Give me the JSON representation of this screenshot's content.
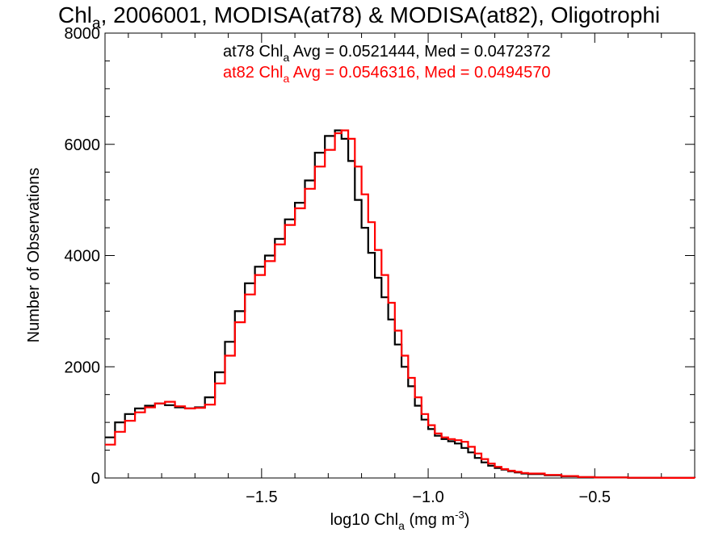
{
  "chart_data": {
    "type": "line",
    "title_parts": {
      "pre": "Chl",
      "sub": "a",
      "post": ", 2006001, MODISA(at78) & MODISA(at82), Oligotrophi"
    },
    "xlabel_parts": {
      "pre": "log10 Chl",
      "sub": "a",
      "mid": " (mg m",
      "sup": "-3",
      "post": ")"
    },
    "ylabel": "Number of Observations",
    "xlim": [
      -1.97,
      -0.2
    ],
    "ylim": [
      0,
      8000
    ],
    "xticks": [
      {
        "value": -1.5,
        "label": "−1.5"
      },
      {
        "value": -1.0,
        "label": "−1.0"
      },
      {
        "value": -0.5,
        "label": "−0.5"
      }
    ],
    "yticks": [
      {
        "value": 0,
        "label": "0"
      },
      {
        "value": 2000,
        "label": "2000"
      },
      {
        "value": 4000,
        "label": "4000"
      },
      {
        "value": 6000,
        "label": "6000"
      },
      {
        "value": 8000,
        "label": "8000"
      }
    ],
    "series": [
      {
        "name": "at78",
        "color": "#000000",
        "stats": {
          "pre": "at78 Chl",
          "sub": "a",
          "post": " Avg = 0.0521444, Med = 0.0472372"
        },
        "x": [
          -1.97,
          -1.94,
          -1.91,
          -1.88,
          -1.85,
          -1.82,
          -1.79,
          -1.76,
          -1.73,
          -1.7,
          -1.67,
          -1.64,
          -1.61,
          -1.58,
          -1.55,
          -1.52,
          -1.49,
          -1.46,
          -1.43,
          -1.4,
          -1.37,
          -1.34,
          -1.31,
          -1.28,
          -1.26,
          -1.24,
          -1.22,
          -1.2,
          -1.18,
          -1.16,
          -1.14,
          -1.12,
          -1.1,
          -1.08,
          -1.06,
          -1.04,
          -1.02,
          -1.0,
          -0.98,
          -0.96,
          -0.94,
          -0.92,
          -0.9,
          -0.88,
          -0.86,
          -0.84,
          -0.82,
          -0.8,
          -0.78,
          -0.76,
          -0.74,
          -0.72,
          -0.7,
          -0.65,
          -0.6,
          -0.55,
          -0.5,
          -0.4,
          -0.3,
          -0.2
        ],
        "y": [
          730,
          1000,
          1150,
          1250,
          1300,
          1340,
          1310,
          1270,
          1250,
          1270,
          1450,
          1900,
          2450,
          3000,
          3500,
          3800,
          4000,
          4300,
          4650,
          4950,
          5350,
          5850,
          6150,
          6250,
          6100,
          5700,
          5000,
          4500,
          4050,
          3600,
          3250,
          2850,
          2400,
          2000,
          1650,
          1300,
          1050,
          880,
          760,
          700,
          660,
          620,
          540,
          460,
          360,
          280,
          220,
          180,
          150,
          120,
          100,
          80,
          70,
          50,
          30,
          15,
          8,
          3,
          1,
          0
        ]
      },
      {
        "name": "at82",
        "color": "#ff0000",
        "stats": {
          "pre": "at82 Chl",
          "sub": "a",
          "post": " Avg = 0.0546316, Med = 0.0494570"
        },
        "x": [
          -1.97,
          -1.94,
          -1.91,
          -1.88,
          -1.85,
          -1.82,
          -1.79,
          -1.76,
          -1.73,
          -1.7,
          -1.67,
          -1.64,
          -1.61,
          -1.58,
          -1.55,
          -1.52,
          -1.49,
          -1.46,
          -1.43,
          -1.4,
          -1.37,
          -1.34,
          -1.31,
          -1.28,
          -1.26,
          -1.24,
          -1.22,
          -1.2,
          -1.18,
          -1.16,
          -1.14,
          -1.12,
          -1.1,
          -1.08,
          -1.06,
          -1.04,
          -1.02,
          -1.0,
          -0.98,
          -0.96,
          -0.94,
          -0.92,
          -0.9,
          -0.88,
          -0.86,
          -0.84,
          -0.82,
          -0.8,
          -0.78,
          -0.76,
          -0.74,
          -0.72,
          -0.7,
          -0.65,
          -0.6,
          -0.55,
          -0.5,
          -0.4,
          -0.3,
          -0.2
        ],
        "y": [
          600,
          830,
          1030,
          1180,
          1270,
          1340,
          1370,
          1290,
          1250,
          1260,
          1320,
          1700,
          2200,
          2800,
          3300,
          3650,
          3900,
          4200,
          4550,
          4850,
          5200,
          5600,
          5900,
          6200,
          6250,
          6100,
          5600,
          5100,
          4600,
          4100,
          3650,
          3150,
          2650,
          2200,
          1800,
          1450,
          1150,
          950,
          800,
          730,
          700,
          680,
          650,
          560,
          440,
          340,
          260,
          200,
          160,
          130,
          110,
          90,
          80,
          55,
          35,
          18,
          10,
          4,
          1,
          0
        ]
      }
    ]
  }
}
